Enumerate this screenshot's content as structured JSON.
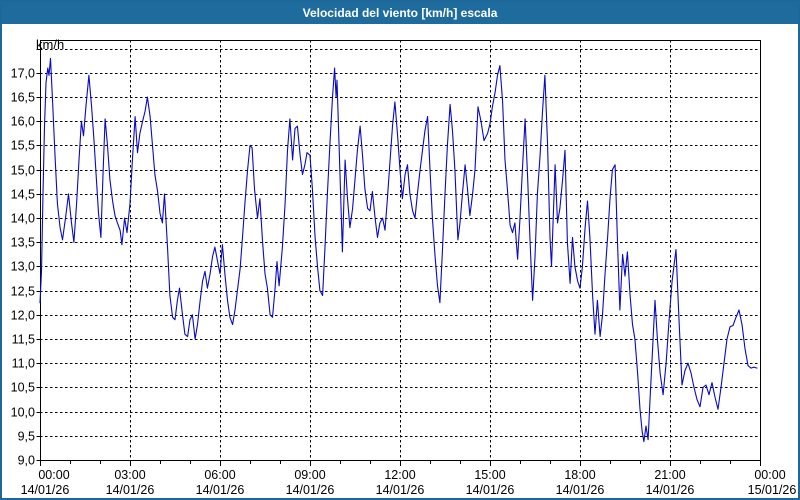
{
  "window": {
    "title": "Velocidad del viento [km/h] escala"
  },
  "colors": {
    "title_bar": "#1e6c9e",
    "frame_border": "#1d6898",
    "plot_background": "#ffffff",
    "grid": "#000000",
    "axis": "#000000",
    "line": "#0909c6",
    "title_text": "#ffffff"
  },
  "chart_data": {
    "type": "line",
    "title": "Velocidad del viento [km/h] escala",
    "xlabel": "",
    "ylabel": "km/h",
    "grid": "dashed",
    "legend": "none",
    "y_axis": {
      "unit_label": "km/h",
      "min": 9.0,
      "max": 17.68,
      "tick_step": 0.5,
      "decimal_separator": ",",
      "tick_labels": [
        "9,0",
        "9,5",
        "10,0",
        "10,5",
        "11,0",
        "11,5",
        "12,0",
        "12,5",
        "13,0",
        "13,5",
        "14,0",
        "14,5",
        "15,0",
        "15,5",
        "16,0",
        "16,5",
        "17,0"
      ]
    },
    "x_axis": {
      "span_hours": 24,
      "major_tick_interval_hours": 3,
      "minor_tick_interval_hours": 1,
      "ticks": [
        {
          "time": "00:00",
          "date": "14/01/26"
        },
        {
          "time": "03:00",
          "date": "14/01/26"
        },
        {
          "time": "06:00",
          "date": "14/01/26"
        },
        {
          "time": "09:00",
          "date": "14/01/26"
        },
        {
          "time": "12:00",
          "date": "14/01/26"
        },
        {
          "time": "15:00",
          "date": "14/01/26"
        },
        {
          "time": "18:00",
          "date": "14/01/26"
        },
        {
          "time": "21:00",
          "date": "14/01/26"
        },
        {
          "time": "00:00",
          "date": "15/01/26"
        }
      ]
    },
    "series": [
      {
        "name": "Velocidad del viento",
        "unit": "km/h",
        "color": "#0909c6",
        "x_unit": "hours_since_00:00_14/01/26",
        "points": [
          [
            0,
            12.25
          ],
          [
            0.05,
            12.9
          ],
          [
            0.1,
            14.5
          ],
          [
            0.15,
            15.9
          ],
          [
            0.2,
            16.8
          ],
          [
            0.26,
            17.1
          ],
          [
            0.3,
            16.95
          ],
          [
            0.35,
            17.3
          ],
          [
            0.42,
            16.4
          ],
          [
            0.5,
            15.3
          ],
          [
            0.58,
            14.3
          ],
          [
            0.67,
            13.8
          ],
          [
            0.75,
            13.55
          ],
          [
            0.85,
            14.0
          ],
          [
            0.95,
            14.5
          ],
          [
            1.05,
            13.9
          ],
          [
            1.13,
            13.5
          ],
          [
            1.22,
            14.3
          ],
          [
            1.3,
            15.2
          ],
          [
            1.38,
            16.0
          ],
          [
            1.45,
            15.7
          ],
          [
            1.53,
            16.3
          ],
          [
            1.63,
            16.95
          ],
          [
            1.72,
            16.3
          ],
          [
            1.8,
            15.6
          ],
          [
            1.88,
            14.8
          ],
          [
            1.95,
            14.1
          ],
          [
            2.03,
            13.6
          ],
          [
            2.1,
            14.9
          ],
          [
            2.17,
            16.05
          ],
          [
            2.25,
            15.5
          ],
          [
            2.33,
            14.8
          ],
          [
            2.42,
            14.35
          ],
          [
            2.5,
            14.05
          ],
          [
            2.58,
            13.9
          ],
          [
            2.67,
            13.75
          ],
          [
            2.73,
            13.45
          ],
          [
            2.82,
            14.0
          ],
          [
            2.9,
            13.7
          ],
          [
            3.0,
            14.3
          ],
          [
            3.08,
            15.2
          ],
          [
            3.17,
            16.1
          ],
          [
            3.25,
            15.35
          ],
          [
            3.33,
            15.75
          ],
          [
            3.42,
            16.0
          ],
          [
            3.5,
            16.2
          ],
          [
            3.58,
            16.5
          ],
          [
            3.67,
            16.1
          ],
          [
            3.75,
            15.5
          ],
          [
            3.83,
            14.9
          ],
          [
            3.92,
            14.55
          ],
          [
            4.0,
            14.1
          ],
          [
            4.08,
            13.9
          ],
          [
            4.15,
            14.5
          ],
          [
            4.25,
            13.4
          ],
          [
            4.33,
            12.4
          ],
          [
            4.42,
            11.95
          ],
          [
            4.5,
            11.9
          ],
          [
            4.58,
            12.3
          ],
          [
            4.65,
            12.55
          ],
          [
            4.75,
            12.0
          ],
          [
            4.83,
            11.6
          ],
          [
            4.92,
            11.55
          ],
          [
            5.0,
            11.9
          ],
          [
            5.08,
            12.0
          ],
          [
            5.17,
            11.5
          ],
          [
            5.25,
            11.8
          ],
          [
            5.33,
            12.25
          ],
          [
            5.42,
            12.7
          ],
          [
            5.5,
            12.9
          ],
          [
            5.58,
            12.55
          ],
          [
            5.67,
            12.85
          ],
          [
            5.75,
            13.2
          ],
          [
            5.83,
            13.4
          ],
          [
            5.92,
            13.1
          ],
          [
            6.0,
            12.85
          ],
          [
            6.08,
            13.45
          ],
          [
            6.17,
            12.8
          ],
          [
            6.25,
            12.3
          ],
          [
            6.33,
            11.95
          ],
          [
            6.42,
            11.8
          ],
          [
            6.5,
            12.1
          ],
          [
            6.58,
            12.5
          ],
          [
            6.67,
            12.95
          ],
          [
            6.75,
            13.6
          ],
          [
            6.83,
            14.3
          ],
          [
            6.92,
            15.0
          ],
          [
            7.0,
            15.5
          ],
          [
            7.07,
            15.45
          ],
          [
            7.15,
            14.6
          ],
          [
            7.25,
            14.0
          ],
          [
            7.33,
            14.4
          ],
          [
            7.42,
            13.5
          ],
          [
            7.5,
            12.85
          ],
          [
            7.58,
            12.55
          ],
          [
            7.67,
            12.0
          ],
          [
            7.75,
            11.95
          ],
          [
            7.83,
            12.5
          ],
          [
            7.9,
            13.1
          ],
          [
            7.97,
            12.6
          ],
          [
            8.08,
            13.4
          ],
          [
            8.17,
            14.3
          ],
          [
            8.25,
            15.4
          ],
          [
            8.33,
            16.05
          ],
          [
            8.42,
            15.2
          ],
          [
            8.5,
            15.85
          ],
          [
            8.58,
            15.9
          ],
          [
            8.67,
            15.3
          ],
          [
            8.75,
            14.9
          ],
          [
            8.83,
            15.1
          ],
          [
            8.9,
            15.35
          ],
          [
            9.0,
            15.3
          ],
          [
            9.08,
            14.6
          ],
          [
            9.17,
            13.6
          ],
          [
            9.25,
            13.0
          ],
          [
            9.33,
            12.5
          ],
          [
            9.42,
            12.4
          ],
          [
            9.5,
            13.4
          ],
          [
            9.58,
            14.5
          ],
          [
            9.67,
            15.6
          ],
          [
            9.75,
            16.5
          ],
          [
            9.82,
            17.1
          ],
          [
            9.87,
            16.5
          ],
          [
            9.9,
            16.85
          ],
          [
            10.0,
            14.9
          ],
          [
            10.08,
            13.3
          ],
          [
            10.17,
            15.2
          ],
          [
            10.25,
            14.4
          ],
          [
            10.33,
            13.8
          ],
          [
            10.42,
            14.2
          ],
          [
            10.5,
            14.8
          ],
          [
            10.58,
            15.4
          ],
          [
            10.67,
            15.9
          ],
          [
            10.75,
            15.3
          ],
          [
            10.83,
            14.6
          ],
          [
            10.92,
            14.2
          ],
          [
            11.0,
            14.15
          ],
          [
            11.08,
            14.55
          ],
          [
            11.17,
            14.0
          ],
          [
            11.25,
            13.6
          ],
          [
            11.33,
            13.9
          ],
          [
            11.42,
            14.0
          ],
          [
            11.5,
            13.75
          ],
          [
            11.58,
            14.4
          ],
          [
            11.67,
            15.2
          ],
          [
            11.75,
            15.9
          ],
          [
            11.83,
            16.4
          ],
          [
            11.92,
            15.7
          ],
          [
            12.0,
            15.0
          ],
          [
            12.08,
            14.4
          ],
          [
            12.17,
            14.9
          ],
          [
            12.25,
            15.1
          ],
          [
            12.33,
            14.5
          ],
          [
            12.42,
            14.15
          ],
          [
            12.5,
            14.0
          ],
          [
            12.58,
            14.5
          ],
          [
            12.67,
            15.0
          ],
          [
            12.75,
            15.4
          ],
          [
            12.83,
            15.8
          ],
          [
            12.92,
            16.1
          ],
          [
            13.0,
            15.0
          ],
          [
            13.08,
            14.0
          ],
          [
            13.17,
            13.2
          ],
          [
            13.25,
            12.6
          ],
          [
            13.33,
            12.25
          ],
          [
            13.42,
            13.4
          ],
          [
            13.5,
            14.5
          ],
          [
            13.58,
            15.5
          ],
          [
            13.67,
            16.35
          ],
          [
            13.75,
            15.8
          ],
          [
            13.83,
            15.0
          ],
          [
            13.93,
            13.55
          ],
          [
            14.0,
            13.9
          ],
          [
            14.08,
            14.5
          ],
          [
            14.17,
            15.1
          ],
          [
            14.25,
            14.6
          ],
          [
            14.33,
            14.05
          ],
          [
            14.42,
            14.5
          ],
          [
            14.5,
            15.0
          ],
          [
            14.6,
            16.3
          ],
          [
            14.7,
            16.0
          ],
          [
            14.8,
            15.6
          ],
          [
            14.92,
            15.75
          ],
          [
            15.0,
            15.95
          ],
          [
            15.08,
            16.3
          ],
          [
            15.17,
            16.6
          ],
          [
            15.25,
            16.95
          ],
          [
            15.33,
            17.15
          ],
          [
            15.42,
            16.4
          ],
          [
            15.5,
            15.2
          ],
          [
            15.58,
            14.6
          ],
          [
            15.67,
            13.85
          ],
          [
            15.75,
            13.7
          ],
          [
            15.83,
            13.9
          ],
          [
            15.92,
            13.15
          ],
          [
            16.0,
            14.0
          ],
          [
            16.08,
            15.0
          ],
          [
            16.17,
            16.05
          ],
          [
            16.25,
            14.9
          ],
          [
            16.33,
            13.6
          ],
          [
            16.42,
            12.3
          ],
          [
            16.5,
            13.2
          ],
          [
            16.58,
            14.5
          ],
          [
            16.67,
            15.3
          ],
          [
            16.75,
            16.2
          ],
          [
            16.83,
            16.95
          ],
          [
            16.92,
            15.5
          ],
          [
            17.0,
            13.6
          ],
          [
            17.05,
            13.0
          ],
          [
            17.17,
            15.1
          ],
          [
            17.25,
            13.9
          ],
          [
            17.33,
            14.2
          ],
          [
            17.42,
            14.8
          ],
          [
            17.5,
            15.4
          ],
          [
            17.58,
            13.5
          ],
          [
            17.67,
            12.65
          ],
          [
            17.75,
            13.6
          ],
          [
            17.83,
            13.0
          ],
          [
            17.92,
            12.7
          ],
          [
            18.0,
            12.55
          ],
          [
            18.08,
            13.0
          ],
          [
            18.17,
            13.8
          ],
          [
            18.25,
            14.35
          ],
          [
            18.33,
            13.6
          ],
          [
            18.42,
            12.4
          ],
          [
            18.5,
            11.6
          ],
          [
            18.58,
            12.3
          ],
          [
            18.67,
            11.55
          ],
          [
            18.75,
            12.0
          ],
          [
            18.83,
            12.8
          ],
          [
            18.92,
            13.6
          ],
          [
            19.0,
            14.4
          ],
          [
            19.08,
            15.0
          ],
          [
            19.17,
            15.1
          ],
          [
            19.25,
            13.5
          ],
          [
            19.33,
            12.1
          ],
          [
            19.42,
            13.25
          ],
          [
            19.5,
            12.8
          ],
          [
            19.58,
            13.3
          ],
          [
            19.67,
            12.4
          ],
          [
            19.75,
            11.8
          ],
          [
            19.83,
            11.5
          ],
          [
            19.92,
            10.8
          ],
          [
            20.0,
            10.05
          ],
          [
            20.07,
            9.6
          ],
          [
            20.13,
            9.38
          ],
          [
            20.2,
            9.7
          ],
          [
            20.27,
            9.42
          ],
          [
            20.33,
            10.2
          ],
          [
            20.42,
            11.3
          ],
          [
            20.5,
            12.3
          ],
          [
            20.58,
            11.5
          ],
          [
            20.67,
            10.8
          ],
          [
            20.77,
            10.35
          ],
          [
            20.87,
            11.0
          ],
          [
            20.97,
            11.9
          ],
          [
            21.07,
            12.7
          ],
          [
            21.2,
            13.35
          ],
          [
            21.3,
            11.9
          ],
          [
            21.4,
            10.55
          ],
          [
            21.5,
            10.85
          ],
          [
            21.6,
            11.0
          ],
          [
            21.7,
            10.8
          ],
          [
            21.8,
            10.5
          ],
          [
            21.9,
            10.25
          ],
          [
            22.0,
            10.1
          ],
          [
            22.1,
            10.5
          ],
          [
            22.2,
            10.55
          ],
          [
            22.3,
            10.35
          ],
          [
            22.4,
            10.6
          ],
          [
            22.5,
            10.3
          ],
          [
            22.6,
            10.05
          ],
          [
            22.7,
            10.5
          ],
          [
            22.8,
            11.0
          ],
          [
            22.9,
            11.5
          ],
          [
            23.0,
            11.75
          ],
          [
            23.1,
            11.78
          ],
          [
            23.2,
            11.95
          ],
          [
            23.3,
            12.1
          ],
          [
            23.4,
            11.8
          ],
          [
            23.5,
            11.3
          ],
          [
            23.6,
            10.95
          ],
          [
            23.7,
            10.9
          ],
          [
            23.8,
            10.92
          ],
          [
            23.9,
            10.9
          ]
        ]
      }
    ]
  }
}
